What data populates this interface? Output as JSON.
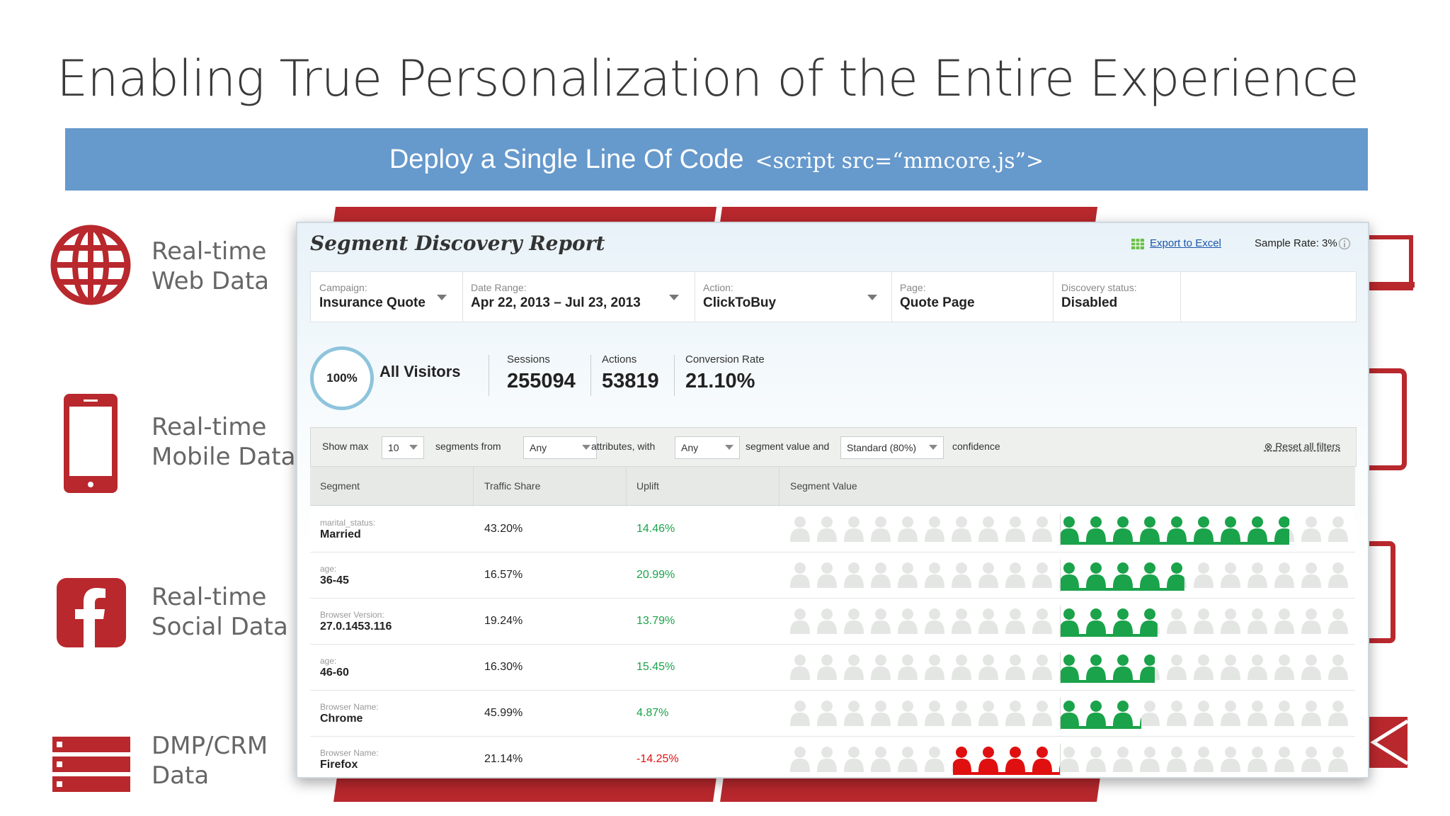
{
  "slide": {
    "title": "Enabling True Personalization of the Entire Experience",
    "banner_text": "Deploy a Single Line Of Code",
    "banner_code": "<script src=“mmcore.js”>",
    "accent_color": "#b8282d",
    "banner_color": "#6699cc"
  },
  "sources": [
    {
      "icon": "globe-icon",
      "line1": "Real-time",
      "line2": "Web Data"
    },
    {
      "icon": "mobile-phone-icon",
      "line1": "Real-time",
      "line2": "Mobile Data"
    },
    {
      "icon": "facebook-icon",
      "line1": "Real-time",
      "line2": "Social Data"
    },
    {
      "icon": "server-stack-icon",
      "line1": "DMP/CRM",
      "line2": "Data"
    }
  ],
  "report": {
    "title": "Segment Discovery Report",
    "export_label": "Export to Excel",
    "sample_rate": "Sample Rate: 3%",
    "filters": [
      {
        "label": "Campaign:",
        "value": "Insurance Quote"
      },
      {
        "label": "Date Range:",
        "value": "Apr 22, 2013 – Jul 23, 2013"
      },
      {
        "label": "Action:",
        "value": "ClickToBuy"
      },
      {
        "label": "Page:",
        "value": "Quote Page"
      },
      {
        "label": "Discovery status:",
        "value": "Disabled"
      }
    ],
    "summary": {
      "percent": "100%",
      "name": "All Visitors",
      "stats": [
        {
          "label": "Sessions",
          "value": "255094"
        },
        {
          "label": "Actions",
          "value": "53819"
        },
        {
          "label": "Conversion Rate",
          "value": "21.10%"
        }
      ]
    },
    "controls": {
      "show_max": "Show max",
      "max_value": "10",
      "segments_from": "segments from",
      "from_value": "Any",
      "attributes_with": "attributes, with",
      "with_value": "Any",
      "segment_value_and": "segment value and",
      "confidence_value": "Standard (80%)",
      "confidence": "confidence",
      "reset": "Reset all filters"
    },
    "columns": [
      "Segment",
      "Traffic Share",
      "Uplift",
      "Segment Value"
    ],
    "rows": [
      {
        "attr": "marital_status:",
        "value": "Married",
        "share": "43.20%",
        "uplift": "14.46%",
        "direction": "positive",
        "icons": 8.5
      },
      {
        "attr": "age:",
        "value": "36-45",
        "share": "16.57%",
        "uplift": "20.99%",
        "direction": "positive",
        "icons": 4.6
      },
      {
        "attr": "Browser Version:",
        "value": "27.0.1453.116",
        "share": "19.24%",
        "uplift": "13.79%",
        "direction": "positive",
        "icons": 3.6
      },
      {
        "attr": "age:",
        "value": "46-60",
        "share": "16.30%",
        "uplift": "15.45%",
        "direction": "positive",
        "icons": 3.5
      },
      {
        "attr": "Browser Name:",
        "value": "Chrome",
        "share": "45.99%",
        "uplift": "4.87%",
        "direction": "positive",
        "icons": 3.0
      },
      {
        "attr": "Browser Name:",
        "value": "Firefox",
        "share": "21.14%",
        "uplift": "-14.25%",
        "direction": "negative",
        "icons": 4.0
      }
    ],
    "positive_color": "#1aa34a",
    "negative_color": "#e01010"
  }
}
